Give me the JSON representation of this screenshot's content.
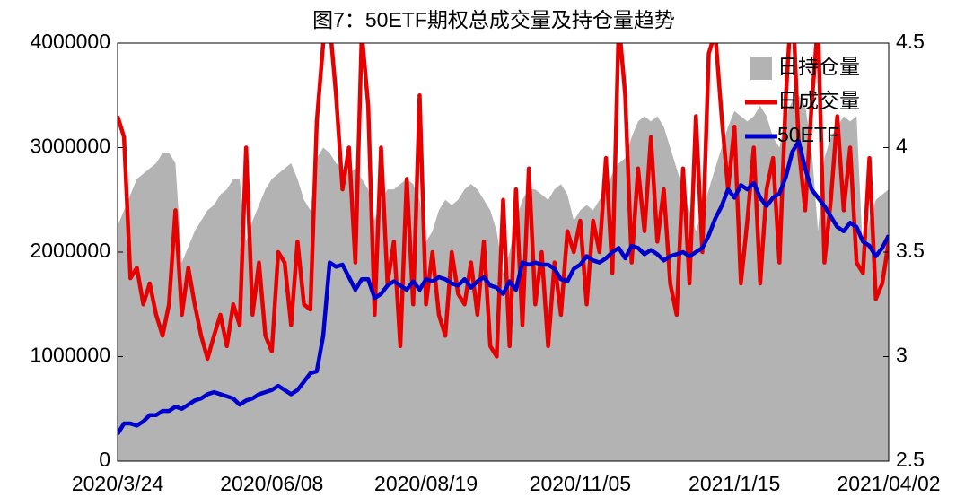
{
  "chart_data": {
    "type": "line",
    "title": "图7：50ETF期权总成交量及持仓量趋势",
    "categories": [
      "2020/3/24",
      null,
      null,
      null,
      null,
      null,
      null,
      null,
      null,
      null,
      null,
      null,
      null,
      null,
      null,
      null,
      null,
      null,
      null,
      null,
      null,
      null,
      null,
      null,
      "2020/06/08",
      null,
      null,
      null,
      null,
      null,
      null,
      null,
      null,
      null,
      null,
      null,
      null,
      null,
      null,
      null,
      null,
      null,
      null,
      null,
      null,
      null,
      null,
      null,
      "2020/08/19",
      null,
      null,
      null,
      null,
      null,
      null,
      null,
      null,
      null,
      null,
      null,
      null,
      null,
      null,
      null,
      null,
      null,
      null,
      null,
      null,
      null,
      null,
      null,
      "2020/11/05",
      null,
      null,
      null,
      null,
      null,
      null,
      null,
      null,
      null,
      null,
      null,
      null,
      null,
      null,
      null,
      null,
      null,
      null,
      null,
      null,
      null,
      null,
      null,
      "2021/1/15",
      null,
      null,
      null,
      null,
      null,
      null,
      null,
      null,
      null,
      null,
      null,
      null,
      null,
      null,
      null,
      null,
      null,
      null,
      null,
      null,
      null,
      null,
      null,
      "2021/04/02"
    ],
    "series": [
      {
        "name": "日持仓量",
        "type": "area",
        "color": "#b3b3b3",
        "values": [
          2250000,
          2400000,
          2550000,
          2700000,
          2750000,
          2800000,
          2850000,
          2950000,
          2950000,
          2850000,
          1900000,
          2050000,
          2200000,
          2300000,
          2400000,
          2450000,
          2550000,
          2600000,
          2700000,
          2700000,
          2100000,
          2300000,
          2450000,
          2600000,
          2700000,
          2750000,
          2800000,
          2850000,
          2700000,
          2500000,
          2400000,
          2900000,
          3000000,
          2950000,
          2850000,
          2800000,
          2750000,
          2800000,
          2700000,
          2600000,
          2300000,
          2500000,
          2600000,
          2600000,
          2650000,
          2700000,
          2650000,
          2500000,
          2100000,
          2200000,
          2400000,
          2500000,
          2450000,
          2500000,
          2600000,
          2650000,
          2600000,
          2500000,
          2400000,
          2200000,
          1800000,
          2000000,
          2300000,
          2500000,
          2600000,
          2600000,
          2550000,
          2500000,
          2600000,
          2650000,
          2550000,
          2300000,
          2400000,
          2450000,
          2400000,
          2500000,
          2600000,
          2750000,
          2850000,
          2900000,
          3100000,
          3250000,
          3300000,
          3250000,
          3300000,
          3200000,
          3000000,
          2800000,
          2600000,
          2400000,
          2200000,
          2400000,
          2600000,
          2800000,
          3000000,
          3200000,
          3350000,
          3300000,
          3250000,
          3300000,
          3400000,
          3300000,
          3100000,
          3000000,
          3300000,
          3450000,
          3500000,
          3400000,
          3000000,
          2200000,
          2900000,
          3100000,
          3200000,
          3300000,
          3250000,
          3300000,
          1950000,
          2300000,
          2500000,
          2550000,
          2600000
        ]
      },
      {
        "name": "日成交量",
        "type": "line",
        "color": "#e60000",
        "values": [
          3300000,
          3100000,
          1750000,
          1850000,
          1500000,
          1700000,
          1400000,
          1200000,
          1500000,
          2400000,
          1400000,
          1850000,
          1500000,
          1200000,
          980000,
          1200000,
          1400000,
          1100000,
          1500000,
          1300000,
          3000000,
          1400000,
          1900000,
          1200000,
          1050000,
          2000000,
          1900000,
          1300000,
          2100000,
          1500000,
          1450000,
          3250000,
          4000000,
          4200000,
          3500000,
          2600000,
          3000000,
          1900000,
          4100000,
          3400000,
          1400000,
          3000000,
          1700000,
          2100000,
          1100000,
          2700000,
          1500000,
          3500000,
          1500000,
          2000000,
          1400000,
          1200000,
          2000000,
          1600000,
          1500000,
          1900000,
          1400000,
          2100000,
          1100000,
          1000000,
          2500000,
          1100000,
          2600000,
          1300000,
          2800000,
          1500000,
          2000000,
          1100000,
          1900000,
          1400000,
          2200000,
          2000000,
          2300000,
          1500000,
          2300000,
          2000000,
          2900000,
          1800000,
          4200000,
          3500000,
          1900000,
          2800000,
          2200000,
          3100000,
          2100000,
          2600000,
          1700000,
          1400000,
          2800000,
          1700000,
          3300000,
          2000000,
          3900000,
          4100000,
          3300000,
          2600000,
          3200000,
          1700000,
          2300000,
          3000000,
          1700000,
          2600000,
          2900000,
          1900000,
          3500000,
          4500000,
          3000000,
          2400000,
          3400000,
          4200000,
          1900000,
          2500000,
          3300000,
          2400000,
          3000000,
          1900000,
          1800000,
          2900000,
          1550000,
          1700000,
          2100000
        ]
      },
      {
        "name": "50ETF",
        "type": "line",
        "axis": "y2",
        "color": "#0000cc",
        "values": [
          2.63,
          2.68,
          2.68,
          2.67,
          2.69,
          2.72,
          2.72,
          2.74,
          2.74,
          2.76,
          2.75,
          2.77,
          2.79,
          2.8,
          2.82,
          2.83,
          2.82,
          2.81,
          2.8,
          2.77,
          2.79,
          2.8,
          2.82,
          2.83,
          2.84,
          2.86,
          2.84,
          2.82,
          2.84,
          2.88,
          2.92,
          2.93,
          3.1,
          3.45,
          3.43,
          3.44,
          3.38,
          3.32,
          3.37,
          3.37,
          3.28,
          3.3,
          3.34,
          3.36,
          3.34,
          3.32,
          3.36,
          3.32,
          3.37,
          3.36,
          3.38,
          3.37,
          3.35,
          3.34,
          3.37,
          3.33,
          3.36,
          3.38,
          3.34,
          3.33,
          3.3,
          3.36,
          3.32,
          3.45,
          3.44,
          3.45,
          3.44,
          3.44,
          3.42,
          3.37,
          3.36,
          3.42,
          3.44,
          3.48,
          3.46,
          3.45,
          3.47,
          3.5,
          3.52,
          3.47,
          3.53,
          3.52,
          3.49,
          3.51,
          3.49,
          3.46,
          3.48,
          3.49,
          3.5,
          3.48,
          3.5,
          3.52,
          3.58,
          3.66,
          3.72,
          3.8,
          3.76,
          3.82,
          3.8,
          3.83,
          3.76,
          3.72,
          3.76,
          3.78,
          3.86,
          3.98,
          4.03,
          3.9,
          3.8,
          3.76,
          3.72,
          3.67,
          3.62,
          3.6,
          3.64,
          3.62,
          3.55,
          3.53,
          3.48,
          3.52,
          3.58
        ]
      }
    ],
    "ylim": [
      0,
      4000000
    ],
    "yticks": [
      0,
      1000000,
      2000000,
      3000000,
      4000000
    ],
    "y2lim": [
      2.5,
      4.5
    ],
    "y2ticks": [
      2.5,
      3,
      3.5,
      4,
      4.5
    ],
    "legend": "upper right"
  }
}
